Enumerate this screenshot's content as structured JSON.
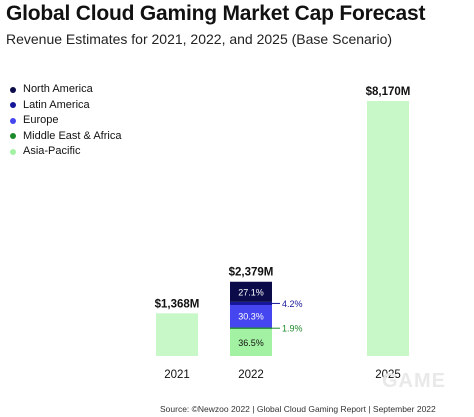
{
  "chart_data": {
    "type": "bar",
    "title": "Global Cloud Gaming Market Cap Forecast",
    "subtitle": "Revenue Estimates for 2021, 2022, and 2025 (Base Scenario)",
    "categories": [
      "2021",
      "2022",
      "2025"
    ],
    "totals": [
      1368,
      2379,
      8170
    ],
    "total_labels": [
      "$1,368M",
      "$2,379M",
      "$8,170M"
    ],
    "legend_placement": "top-left",
    "regions": [
      {
        "name": "North America",
        "color": "#0b0b4a"
      },
      {
        "name": "Latin America",
        "color": "#16169a"
      },
      {
        "name": "Europe",
        "color": "#4646f0"
      },
      {
        "name": "Middle East & Africa",
        "color": "#1c8a2a"
      },
      {
        "name": "Asia-Pacific",
        "color": "#a3f2a3"
      }
    ],
    "breakdown_2022": [
      {
        "region": "North America",
        "pct": 27.1,
        "label": "27.1%",
        "inside": true
      },
      {
        "region": "Latin America",
        "pct": 4.2,
        "label": "4.2%",
        "inside": false
      },
      {
        "region": "Europe",
        "pct": 30.3,
        "label": "30.3%",
        "inside": true
      },
      {
        "region": "Middle East & Africa",
        "pct": 1.9,
        "label": "1.9%",
        "inside": false
      },
      {
        "region": "Asia-Pacific",
        "pct": 36.5,
        "label": "36.5%",
        "inside": true
      }
    ],
    "single_color": "#c8f7c8",
    "grid": false
  },
  "source": "Source: ©Newzoo 2022 | Global Cloud Gaming Report | September 2022",
  "watermark": "GAME"
}
